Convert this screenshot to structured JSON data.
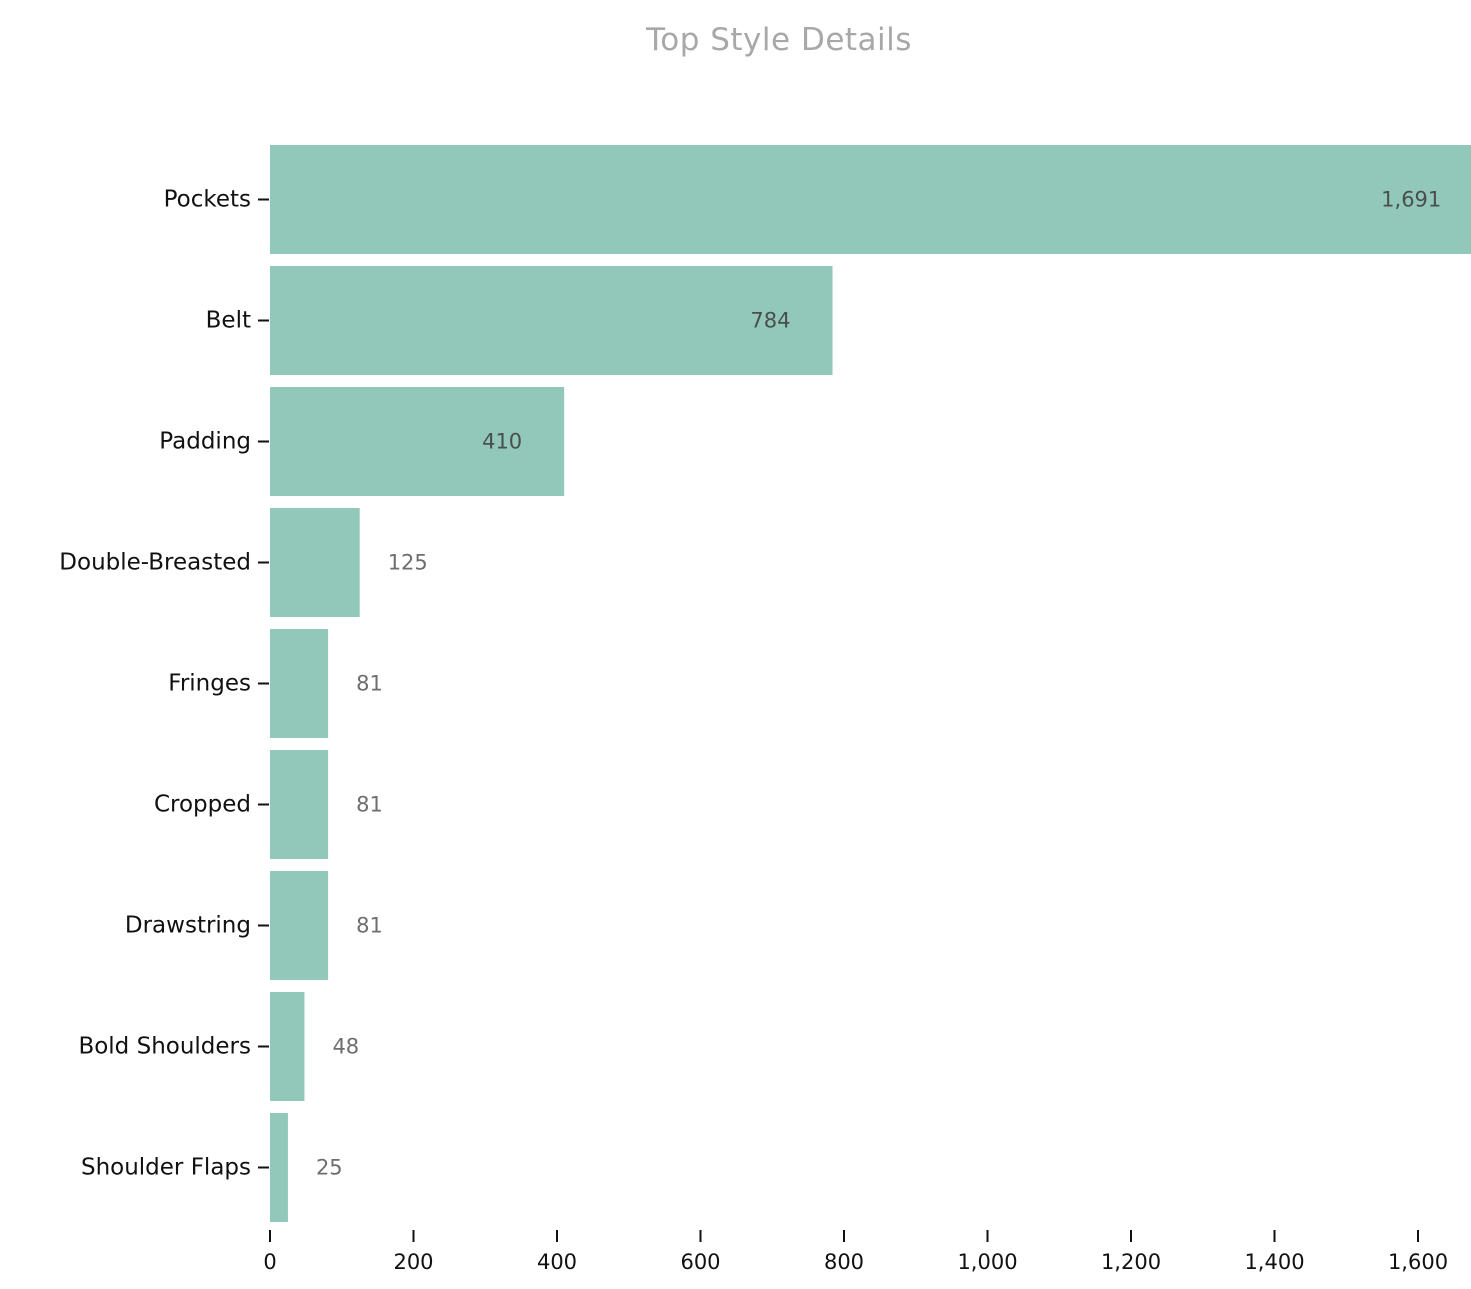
{
  "chart_data": {
    "type": "bar",
    "orientation": "horizontal",
    "title": "Top Style Details",
    "xlabel": "",
    "ylabel": "",
    "categories": [
      "Pockets",
      "Belt",
      "Padding",
      "Double-Breasted",
      "Fringes",
      "Cropped",
      "Drawstring",
      "Bold Shoulders",
      "Shoulder Flaps"
    ],
    "values": [
      1691,
      784,
      410,
      125,
      81,
      81,
      81,
      48,
      25
    ],
    "value_labels": [
      "1,691",
      "784",
      "410",
      "125",
      "81",
      "81",
      "81",
      "48",
      "25"
    ],
    "x_ticks": [
      0,
      200,
      400,
      600,
      800,
      1000,
      1200,
      1400,
      1600
    ],
    "x_tick_labels": [
      "0",
      "200",
      "400",
      "600",
      "800",
      "1,000",
      "1,200",
      "1,400",
      "1,600"
    ],
    "xlim": [
      0,
      1691
    ],
    "grid": false,
    "colors": {
      "bar": "#91c8b9",
      "label_inside": "#4a4f4d",
      "label_outside": "#6e6e6e",
      "axis": "#111111",
      "title": "#a8a8a8"
    }
  }
}
